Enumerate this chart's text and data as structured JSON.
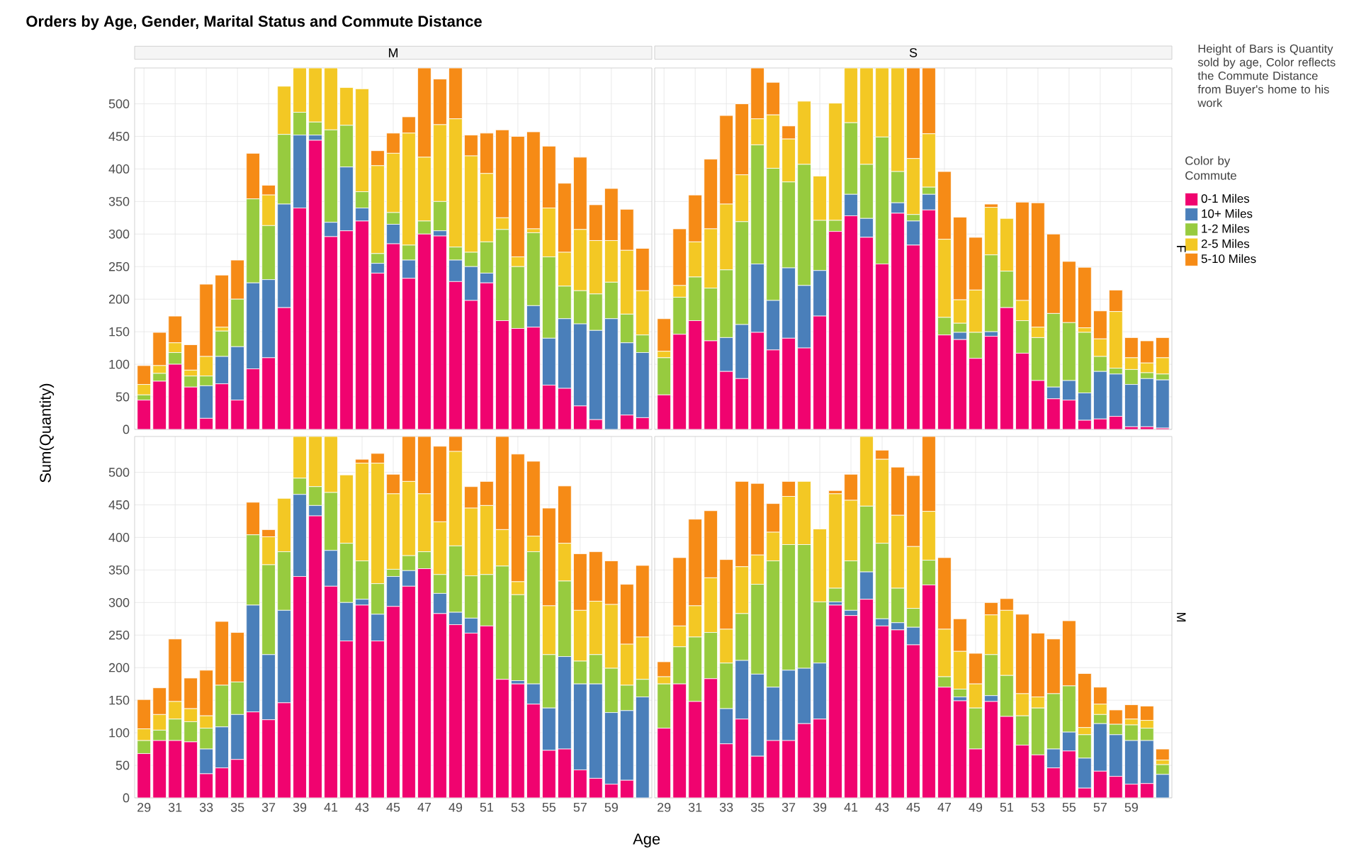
{
  "chart_data": [
    {
      "type": "bar",
      "stacked": true,
      "title": "M",
      "ylabel": "Sum(Quantity)",
      "legend": "right",
      "legend_title": "Color by Commute",
      "grid": true,
      "tick_labels": "y",
      "ylim": [
        0,
        555
      ],
      "yticks": [
        0,
        50,
        100,
        150,
        200,
        250,
        300,
        350,
        400,
        450,
        500
      ],
      "categories": [
        "29",
        null,
        "31",
        null,
        "33",
        null,
        "35",
        null,
        "37",
        null,
        "39",
        null,
        "41",
        null,
        "43",
        null,
        "45",
        null,
        "47",
        null,
        "49",
        null,
        "51",
        null,
        "53",
        null,
        "55",
        null,
        "57",
        null,
        "59",
        null,
        null
      ],
      "series": [
        {
          "name": "0-1 Miles",
          "color": "#f0036f",
          "values": [
            45,
            74,
            100,
            65,
            17,
            70,
            45,
            93,
            110,
            187,
            340,
            444,
            296,
            305,
            320,
            240,
            285,
            232,
            300,
            297,
            227,
            198,
            225,
            167,
            155,
            157,
            68,
            63,
            36,
            15,
            0,
            22,
            18
          ]
        },
        {
          "name": "10+ Miles",
          "color": "#4a7fba",
          "values": [
            0,
            0,
            0,
            0,
            50,
            42,
            82,
            132,
            120,
            159,
            112,
            8,
            22,
            98,
            20,
            15,
            30,
            28,
            0,
            8,
            33,
            52,
            15,
            0,
            0,
            33,
            72,
            107,
            126,
            137,
            170,
            111,
            100
          ]
        },
        {
          "name": "1-2 Miles",
          "color": "#97cb3f",
          "values": [
            8,
            12,
            18,
            17,
            15,
            39,
            73,
            129,
            83,
            107,
            35,
            20,
            142,
            64,
            25,
            15,
            18,
            23,
            20,
            45,
            20,
            22,
            48,
            140,
            95,
            112,
            125,
            50,
            51,
            56,
            56,
            44,
            27
          ]
        },
        {
          "name": "2-5 Miles",
          "color": "#f3c824",
          "values": [
            16,
            12,
            15,
            9,
            30,
            6,
            0,
            0,
            47,
            74,
            68,
            83,
            95,
            58,
            158,
            135,
            91,
            172,
            98,
            118,
            197,
            148,
            105,
            18,
            15,
            6,
            75,
            52,
            94,
            82,
            64,
            98,
            68
          ]
        },
        {
          "name": "5-10 Miles",
          "color": "#f68b16",
          "values": [
            29,
            51,
            41,
            39,
            111,
            80,
            60,
            70,
            15,
            0,
            0,
            0,
            0,
            0,
            0,
            23,
            31,
            25,
            137,
            70,
            78,
            32,
            62,
            135,
            185,
            149,
            95,
            106,
            111,
            55,
            80,
            63,
            65
          ]
        }
      ]
    },
    {
      "type": "bar",
      "stacked": true,
      "title": "S",
      "y2label": "F",
      "grid": true,
      "tick_labels": false,
      "ylim": [
        0,
        555
      ],
      "yticks": [
        0,
        50,
        100,
        150,
        200,
        250,
        300,
        350,
        400,
        450,
        500
      ],
      "categories": [
        "29",
        null,
        "31",
        null,
        "33",
        null,
        "35",
        null,
        "37",
        null,
        "39",
        null,
        "41",
        null,
        "43",
        null,
        "45",
        null,
        "47",
        null,
        "49",
        null,
        "51",
        null,
        "53",
        null,
        "55",
        null,
        "57",
        null,
        "59",
        null,
        null
      ],
      "series": [
        {
          "color": "#f0036f",
          "values": [
            53,
            146,
            167,
            136,
            89,
            78,
            149,
            122,
            140,
            125,
            174,
            304,
            328,
            295,
            254,
            332,
            283,
            337,
            145,
            138,
            109,
            143,
            187,
            117,
            75,
            47,
            45,
            14,
            16,
            20,
            4,
            4,
            2
          ]
        },
        {
          "color": "#4a7fba",
          "values": [
            0,
            0,
            0,
            0,
            52,
            83,
            105,
            76,
            108,
            96,
            70,
            0,
            33,
            29,
            0,
            16,
            37,
            24,
            0,
            11,
            0,
            7,
            0,
            0,
            0,
            18,
            30,
            42,
            73,
            65,
            65,
            74,
            74
          ]
        },
        {
          "color": "#97cb3f",
          "values": [
            57,
            57,
            67,
            81,
            104,
            158,
            183,
            203,
            132,
            186,
            77,
            17,
            110,
            83,
            195,
            48,
            10,
            11,
            27,
            14,
            40,
            118,
            56,
            50,
            66,
            113,
            89,
            93,
            23,
            9,
            23,
            9,
            9
          ]
        },
        {
          "color": "#f3c824",
          "values": [
            10,
            18,
            54,
            91,
            101,
            72,
            40,
            82,
            66,
            97,
            68,
            180,
            84,
            148,
            106,
            159,
            86,
            82,
            120,
            36,
            65,
            73,
            81,
            31,
            16,
            0,
            0,
            7,
            27,
            87,
            18,
            15,
            25
          ]
        },
        {
          "color": "#f68b16",
          "values": [
            50,
            87,
            72,
            107,
            136,
            109,
            78,
            50,
            20,
            0,
            0,
            0,
            0,
            0,
            0,
            0,
            139,
            101,
            104,
            127,
            81,
            5,
            0,
            151,
            191,
            122,
            94,
            93,
            43,
            33,
            31,
            34,
            31
          ]
        }
      ]
    },
    {
      "type": "bar",
      "stacked": true,
      "xlabel": "Age",
      "grid": true,
      "ylim": [
        0,
        555
      ],
      "yticks": [
        0,
        50,
        100,
        150,
        200,
        250,
        300,
        350,
        400,
        450,
        500
      ],
      "categories": [
        "29",
        null,
        "31",
        null,
        "33",
        null,
        "35",
        null,
        "37",
        null,
        "39",
        null,
        "41",
        null,
        "43",
        null,
        "45",
        null,
        "47",
        null,
        "49",
        null,
        "51",
        null,
        "53",
        null,
        "55",
        null,
        "57",
        null,
        "59",
        null,
        null
      ],
      "series": [
        {
          "color": "#f0036f",
          "values": [
            68,
            88,
            88,
            86,
            37,
            46,
            59,
            132,
            120,
            146,
            340,
            433,
            325,
            241,
            296,
            241,
            294,
            325,
            352,
            283,
            266,
            253,
            264,
            182,
            175,
            144,
            73,
            75,
            43,
            30,
            21,
            27,
            0
          ]
        },
        {
          "color": "#4a7fba",
          "values": [
            0,
            0,
            0,
            0,
            38,
            63,
            69,
            164,
            100,
            142,
            126,
            16,
            55,
            59,
            9,
            41,
            46,
            24,
            0,
            31,
            19,
            23,
            0,
            0,
            5,
            31,
            65,
            142,
            132,
            145,
            110,
            107,
            155
          ]
        },
        {
          "color": "#97cb3f",
          "values": [
            20,
            16,
            33,
            31,
            32,
            64,
            50,
            108,
            138,
            90,
            25,
            29,
            89,
            91,
            59,
            47,
            11,
            23,
            26,
            29,
            102,
            65,
            79,
            174,
            132,
            203,
            82,
            116,
            35,
            45,
            68,
            39,
            27
          ]
        },
        {
          "color": "#f3c824",
          "values": [
            18,
            24,
            27,
            20,
            19,
            0,
            0,
            0,
            43,
            82,
            64,
            77,
            86,
            105,
            150,
            185,
            116,
            114,
            89,
            81,
            145,
            104,
            106,
            56,
            20,
            24,
            75,
            58,
            78,
            82,
            98,
            63,
            65
          ]
        },
        {
          "color": "#f68b16",
          "values": [
            45,
            41,
            96,
            47,
            70,
            98,
            76,
            50,
            11,
            0,
            0,
            0,
            0,
            0,
            6,
            15,
            30,
            69,
            88,
            116,
            23,
            33,
            37,
            143,
            196,
            115,
            150,
            88,
            87,
            76,
            67,
            92,
            110
          ]
        }
      ]
    },
    {
      "type": "bar",
      "stacked": true,
      "y2label": "M",
      "grid": true,
      "tick_labels": "x",
      "ylim": [
        0,
        555
      ],
      "yticks": [
        0,
        50,
        100,
        150,
        200,
        250,
        300,
        350,
        400,
        450,
        500
      ],
      "categories": [
        "29",
        null,
        "31",
        null,
        "33",
        null,
        "35",
        null,
        "37",
        null,
        "39",
        null,
        "41",
        null,
        "43",
        null,
        "45",
        null,
        "47",
        null,
        "49",
        null,
        "51",
        null,
        "53",
        null,
        "55",
        null,
        "57",
        null,
        "59",
        null,
        null
      ],
      "series": [
        {
          "color": "#f0036f",
          "values": [
            107,
            175,
            148,
            183,
            83,
            121,
            64,
            88,
            88,
            114,
            121,
            296,
            280,
            305,
            264,
            258,
            235,
            327,
            170,
            149,
            75,
            148,
            125,
            81,
            66,
            46,
            72,
            15,
            41,
            33,
            21,
            22,
            0
          ]
        },
        {
          "color": "#4a7fba",
          "values": [
            0,
            0,
            0,
            0,
            54,
            90,
            126,
            82,
            108,
            85,
            86,
            5,
            8,
            42,
            11,
            11,
            27,
            0,
            0,
            6,
            0,
            9,
            0,
            0,
            0,
            29,
            29,
            46,
            73,
            64,
            67,
            66,
            36
          ]
        },
        {
          "color": "#97cb3f",
          "values": [
            68,
            57,
            99,
            71,
            70,
            72,
            138,
            194,
            193,
            190,
            94,
            21,
            76,
            101,
            116,
            53,
            29,
            38,
            16,
            12,
            63,
            63,
            63,
            45,
            72,
            85,
            71,
            36,
            14,
            16,
            24,
            19,
            15
          ]
        },
        {
          "color": "#f3c824",
          "values": [
            11,
            32,
            48,
            84,
            52,
            72,
            45,
            44,
            74,
            97,
            112,
            145,
            93,
            107,
            129,
            112,
            95,
            75,
            73,
            58,
            37,
            61,
            100,
            34,
            17,
            0,
            0,
            11,
            16,
            0,
            9,
            12,
            7
          ]
        },
        {
          "color": "#f68b16",
          "values": [
            23,
            105,
            133,
            103,
            107,
            131,
            110,
            44,
            23,
            0,
            0,
            5,
            40,
            0,
            14,
            74,
            109,
            115,
            110,
            50,
            47,
            19,
            18,
            122,
            98,
            84,
            100,
            83,
            26,
            22,
            22,
            22,
            17
          ]
        }
      ]
    },
    {
      "type": "other",
      "title": "Orders by Age, Gender, Marital Status and Commute Distance",
      "annotations": [
        "Height of Bars is Quantity sold by age, Color reflects the Commute Distance from Buyer's home to his work"
      ]
    }
  ]
}
